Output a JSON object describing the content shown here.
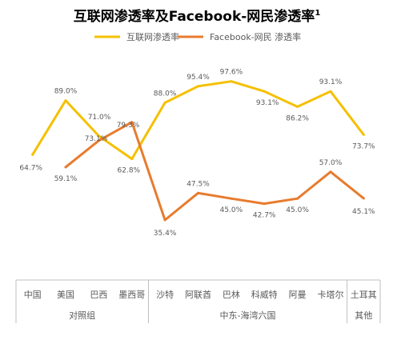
{
  "chart_data": {
    "type": "line",
    "title": "互联网渗透率及Facebook-网民渗透率",
    "title_superscript": "1",
    "categories": [
      "中国",
      "美国",
      "巴西",
      "墨西哥",
      "沙特",
      "阿联酋",
      "巴林",
      "科威特",
      "阿曼",
      "卡塔尔",
      "土耳其"
    ],
    "groups": [
      {
        "label": "对照组",
        "categories": [
          "中国",
          "美国",
          "巴西",
          "墨西哥"
        ]
      },
      {
        "label": "中东-海湾六国",
        "categories": [
          "沙特",
          "阿联酋",
          "巴林",
          "科威特",
          "阿曼",
          "卡塔尔"
        ]
      },
      {
        "label": "其他",
        "categories": [
          "土耳其"
        ]
      }
    ],
    "series": [
      {
        "name": "互联网渗透率",
        "color": "#F5C000",
        "values": [
          64.7,
          89.0,
          73.1,
          62.8,
          88.0,
          95.4,
          97.6,
          93.1,
          86.2,
          93.1,
          73.7
        ],
        "labels": [
          "64.7%",
          "89.0%",
          "73.1%",
          "62.8%",
          "88.0%",
          "95.4%",
          "97.6%",
          "93.1%",
          "86.2%",
          "93.1%",
          "73.7%"
        ]
      },
      {
        "name": "Facebook-网民 渗透率",
        "color": "#E87B2E",
        "values": [
          null,
          59.1,
          71.0,
          79.3,
          35.4,
          47.5,
          45.0,
          42.7,
          45.0,
          57.0,
          45.1
        ],
        "labels": [
          "",
          "59.1%",
          "71.0%",
          "79.3%",
          "35.4%",
          "47.5%",
          "45.0%",
          "42.7%",
          "45.0%",
          "57.0%",
          "45.1%"
        ]
      }
    ],
    "legend_position": "top",
    "grid": false,
    "label_color": "#595959",
    "axis_color": "#BFBFBF"
  }
}
